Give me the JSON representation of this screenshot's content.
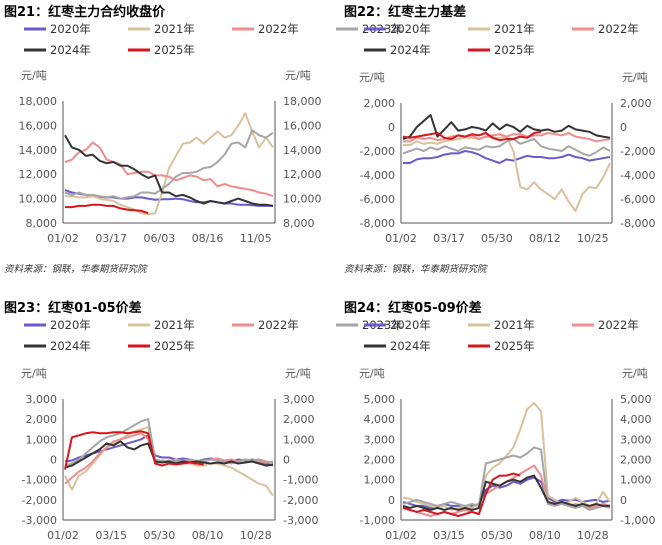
{
  "colors": {
    "2020年": "#6A5ACD",
    "2021年": "#D9C19A",
    "2022年": "#F08C8C",
    "2023年": "#A6A6A6",
    "2024年": "#333333",
    "2025年": "#D8141C",
    "axis": "#555555"
  },
  "chart_data": [
    {
      "type": "line",
      "title": "图21：红枣主力合约收盘价",
      "unit_left": "元/吨",
      "unit_right": "元/吨",
      "yticks": [
        "18,000",
        "16,000",
        "14,000",
        "12,000",
        "10,000",
        "8,000"
      ],
      "ylim": [
        8000,
        18000
      ],
      "xticks": [
        "01/02",
        "03/17",
        "06/03",
        "08/16",
        "11/05"
      ],
      "legend": [
        "2020年",
        "2021年",
        "2022年",
        "2023年",
        "2024年",
        "2025年"
      ],
      "source": "资料来源：钢联，华泰期货研究院",
      "series": [
        {
          "name": "2020年",
          "values": [
            10700,
            10500,
            10400,
            10300,
            10200,
            10150,
            10100,
            10100,
            10000,
            10000,
            10100,
            10100,
            10000,
            9900,
            9950,
            9950,
            10000,
            9950,
            9800,
            9700,
            9700,
            9800,
            9700,
            9600,
            9600,
            9500,
            9500,
            9450,
            9400,
            9400,
            9400
          ]
        },
        {
          "name": "2021年",
          "values": [
            10200,
            10200,
            10100,
            10100,
            10200,
            10000,
            9900,
            9800,
            9500,
            9300,
            9100,
            8800,
            8700,
            8800,
            10500,
            12500,
            13500,
            14500,
            14600,
            15000,
            14500,
            15000,
            15500,
            15000,
            15200,
            16000,
            17000,
            15500,
            14200,
            15000,
            14200
          ]
        },
        {
          "name": "2022年",
          "values": [
            13000,
            13200,
            13800,
            14000,
            14600,
            14200,
            13200,
            13000,
            12800,
            12000,
            12100,
            12200,
            12200,
            11900,
            11900,
            11800,
            11500,
            11700,
            11900,
            11800,
            11500,
            11600,
            11000,
            11200,
            11000,
            10900,
            10800,
            10700,
            10500,
            10400,
            10200
          ]
        },
        {
          "name": "2023年",
          "values": [
            10500,
            10300,
            10500,
            10300,
            10300,
            10200,
            10100,
            10200,
            10000,
            10100,
            10200,
            10500,
            10500,
            10400,
            10800,
            11200,
            11800,
            12100,
            12100,
            12200,
            12500,
            12600,
            13000,
            13600,
            14500,
            14600,
            14200,
            15600,
            15200,
            15000,
            15400
          ]
        },
        {
          "name": "2024年",
          "values": [
            15200,
            14200,
            14000,
            13500,
            13600,
            13100,
            12900,
            13000,
            12700,
            12700,
            12400,
            12000,
            11700,
            11900,
            10500,
            10500,
            10200,
            10300,
            10100,
            9800,
            9600,
            9800,
            9700,
            9600,
            9800,
            10000,
            9800,
            9600,
            9500,
            9500,
            9400
          ]
        },
        {
          "name": "2025年",
          "values": [
            9300,
            9300,
            9400,
            9400,
            9500,
            9500,
            9400,
            9400,
            9200,
            9100,
            9050,
            9000,
            8800,
            null,
            null,
            null,
            null,
            null,
            null,
            null,
            null,
            null,
            null,
            null,
            null,
            null,
            null,
            null,
            null,
            null,
            null
          ]
        }
      ]
    },
    {
      "type": "line",
      "title": "图22：红枣主力基差",
      "unit_left": "元/吨",
      "unit_right": "元/吨",
      "yticks": [
        "2,000",
        "0",
        "-2,000",
        "-4,000",
        "-6,000",
        "-8,000"
      ],
      "ylim": [
        -8000,
        2000
      ],
      "xticks": [
        "01/02",
        "03/17",
        "05/30",
        "08/12",
        "10/25"
      ],
      "legend": [
        "2020年",
        "2021年",
        "2022年",
        "2023年",
        "2024年",
        "2025年"
      ],
      "source": "资料来源：钢联，华泰期货研究院",
      "series": [
        {
          "name": "2020年",
          "values": [
            -3000,
            -3000,
            -2700,
            -2600,
            -2600,
            -2500,
            -2300,
            -2200,
            -2200,
            -2000,
            -2100,
            -2300,
            -2600,
            -2800,
            -3000,
            -2700,
            -2800,
            -2600,
            -2400,
            -2500,
            -2500,
            -2600,
            -2600,
            -2500,
            -2300,
            -2500,
            -2600,
            -2800,
            -2700,
            -2600,
            -2500
          ]
        },
        {
          "name": "2021年",
          "values": [
            -1500,
            -1500,
            -1200,
            -1400,
            -1300,
            -1400,
            -1200,
            -1100,
            -1000,
            -900,
            -900,
            -1000,
            -800,
            -900,
            -900,
            -800,
            -2000,
            -5000,
            -5200,
            -4600,
            -5200,
            -5600,
            -6000,
            -5200,
            -6200,
            -7000,
            -5600,
            -5000,
            -5100,
            -4200,
            -3000
          ]
        },
        {
          "name": "2022年",
          "values": [
            -1200,
            -1200,
            -900,
            -1000,
            -900,
            -1100,
            -1000,
            -800,
            -700,
            -800,
            -700,
            -1000,
            -800,
            -700,
            -600,
            -800,
            -600,
            -600,
            -800,
            -700,
            -700,
            -500,
            -600,
            -700,
            -500,
            -800,
            -900,
            -1000,
            -1200,
            -1100,
            -1000
          ]
        },
        {
          "name": "2023年",
          "values": [
            -2200,
            -2000,
            -1800,
            -2000,
            -1700,
            -1900,
            -1600,
            -1800,
            -2000,
            -1700,
            -1800,
            -1900,
            -1600,
            -1700,
            -1600,
            -1200,
            -1000,
            -1400,
            -1200,
            -1000,
            -1600,
            -1800,
            -1900,
            -2000,
            -1600,
            -1900,
            -2200,
            -2400,
            -2100,
            -1700,
            -2000
          ]
        },
        {
          "name": "2024年",
          "values": [
            -1000,
            -800,
            0,
            500,
            1000,
            -800,
            -200,
            400,
            -300,
            -200,
            0,
            -100,
            -300,
            300,
            -200,
            200,
            0,
            -400,
            100,
            -200,
            -300,
            -200,
            -400,
            -300,
            100,
            -200,
            -300,
            -400,
            -700,
            -800,
            -900
          ]
        },
        {
          "name": "2025年",
          "values": [
            -800,
            -900,
            -800,
            -700,
            -600,
            -500,
            -900,
            -1000,
            -700,
            -800,
            -600,
            -700,
            -500,
            -900,
            -1100,
            -1000,
            -1000,
            -800,
            -900,
            -500,
            -400,
            null,
            null,
            null,
            null,
            null,
            null,
            null,
            null,
            null,
            null
          ]
        }
      ]
    },
    {
      "type": "line",
      "title": "图23：红枣01-05价差",
      "unit_left": "元/吨",
      "unit_right": "元/吨",
      "yticks": [
        "3,000",
        "2,000",
        "1,000",
        "0",
        "-1,000",
        "-2,000",
        "-3,000"
      ],
      "ylim": [
        -3000,
        3000
      ],
      "xticks": [
        "01/02",
        "03/15",
        "05/30",
        "08/10",
        "10/28"
      ],
      "legend": [
        "2020年",
        "2021年",
        "2022年",
        "2023年",
        "2024年",
        "2025年"
      ],
      "source": "",
      "series": [
        {
          "name": "2020年",
          "values": [
            -100,
            -50,
            100,
            200,
            300,
            400,
            500,
            600,
            700,
            800,
            900,
            1000,
            1200,
            200,
            100,
            100,
            0,
            50,
            0,
            -100,
            0,
            50,
            0,
            -50,
            -100,
            0,
            -50,
            0,
            -100,
            -200,
            -300
          ]
        },
        {
          "name": "2021年",
          "values": [
            -800,
            -1500,
            -800,
            -600,
            -200,
            200,
            600,
            800,
            1000,
            1200,
            1400,
            1500,
            1600,
            0,
            -100,
            -150,
            -100,
            -200,
            -200,
            -300,
            -300,
            -200,
            -200,
            -300,
            -400,
            -600,
            -800,
            -1000,
            -1200,
            -1300,
            -1800
          ]
        },
        {
          "name": "2022年",
          "values": [
            -1200,
            -900,
            -600,
            -400,
            -100,
            300,
            600,
            900,
            1000,
            1100,
            1200,
            1300,
            1000,
            -100,
            -50,
            -100,
            0,
            -100,
            -100,
            -50,
            -100,
            0,
            50,
            -50,
            0,
            -100,
            0,
            -50,
            -100,
            -150,
            -100
          ]
        },
        {
          "name": "2023年",
          "values": [
            -300,
            -200,
            0,
            300,
            600,
            900,
            1100,
            1200,
            1300,
            1500,
            1700,
            1900,
            2000,
            0,
            -100,
            -50,
            -100,
            -50,
            0,
            -100,
            -50,
            0,
            -50,
            -100,
            -200,
            -100,
            0,
            -50,
            0,
            -100,
            -150
          ]
        },
        {
          "name": "2024年",
          "values": [
            -400,
            -300,
            -100,
            100,
            300,
            500,
            800,
            700,
            900,
            600,
            500,
            700,
            800,
            -100,
            -150,
            -100,
            -200,
            -100,
            -150,
            -100,
            -150,
            -200,
            -150,
            -200,
            -100,
            -200,
            -150,
            -100,
            -200,
            -300,
            -250
          ]
        },
        {
          "name": "2025年",
          "values": [
            -500,
            1100,
            1200,
            1300,
            1350,
            1300,
            1300,
            1350,
            1350,
            1300,
            1350,
            1400,
            1300,
            -200,
            -300,
            -200,
            -250,
            -200,
            -150,
            -200,
            -250,
            null,
            null,
            null,
            null,
            null,
            null,
            null,
            null,
            null,
            null
          ]
        }
      ]
    },
    {
      "type": "line",
      "title": "图24：红枣05-09价差",
      "unit_left": "元/吨",
      "unit_right": "元/吨",
      "yticks": [
        "5,000",
        "4,000",
        "3,000",
        "2,000",
        "1,000",
        "0",
        "-1,000"
      ],
      "ylim": [
        -1000,
        5000
      ],
      "xticks": [
        "01/02",
        "03/15",
        "05/30",
        "08/10",
        "10/28"
      ],
      "legend": [
        "2020年",
        "2021年",
        "2022年",
        "2023年",
        "2024年",
        "2025年"
      ],
      "source": "",
      "series": [
        {
          "name": "2020年",
          "values": [
            -100,
            -200,
            -300,
            -300,
            -400,
            -300,
            -200,
            -300,
            -300,
            -400,
            -300,
            -200,
            500,
            700,
            600,
            700,
            900,
            800,
            1000,
            1100,
            900,
            100,
            -100,
            0,
            -50,
            0,
            -100,
            -50,
            0,
            -100,
            -50
          ]
        },
        {
          "name": "2021年",
          "values": [
            100,
            50,
            -100,
            -200,
            -300,
            -400,
            -300,
            -500,
            -400,
            -300,
            -400,
            -200,
            1200,
            1600,
            1800,
            2200,
            2600,
            3500,
            4500,
            4800,
            4400,
            200,
            0,
            -200,
            -100,
            100,
            -100,
            -300,
            -200,
            400,
            -100
          ]
        },
        {
          "name": "2022年",
          "values": [
            -400,
            -500,
            -600,
            -700,
            -800,
            -700,
            -600,
            -700,
            -600,
            -500,
            -600,
            -700,
            300,
            500,
            700,
            900,
            1100,
            1300,
            1500,
            1700,
            1200,
            -100,
            -200,
            -100,
            -300,
            -200,
            -300,
            -400,
            -300,
            -200,
            -300
          ]
        },
        {
          "name": "2023年",
          "values": [
            -200,
            -100,
            0,
            -100,
            -200,
            -300,
            -200,
            -100,
            -200,
            -300,
            -200,
            -300,
            1800,
            1900,
            2000,
            2100,
            2200,
            2100,
            2300,
            2600,
            2500,
            -200,
            -300,
            -200,
            -300,
            -400,
            -300,
            -500,
            -400,
            -300,
            -400
          ]
        },
        {
          "name": "2024年",
          "values": [
            -300,
            -400,
            -300,
            -400,
            -500,
            -400,
            -500,
            -400,
            -500,
            -400,
            -500,
            -400,
            900,
            800,
            700,
            900,
            1000,
            900,
            1100,
            1200,
            600,
            -100,
            -200,
            -100,
            -200,
            -300,
            -200,
            -300,
            -200,
            -300,
            -300
          ]
        },
        {
          "name": "2025年",
          "values": [
            -400,
            -500,
            -600,
            -500,
            -600,
            -700,
            -600,
            -700,
            -800,
            -700,
            -600,
            -700,
            300,
            1000,
            1200,
            1200,
            1300,
            1200,
            null,
            null,
            null,
            null,
            null,
            null,
            null,
            null,
            null,
            null,
            null,
            null,
            null
          ]
        }
      ]
    }
  ]
}
